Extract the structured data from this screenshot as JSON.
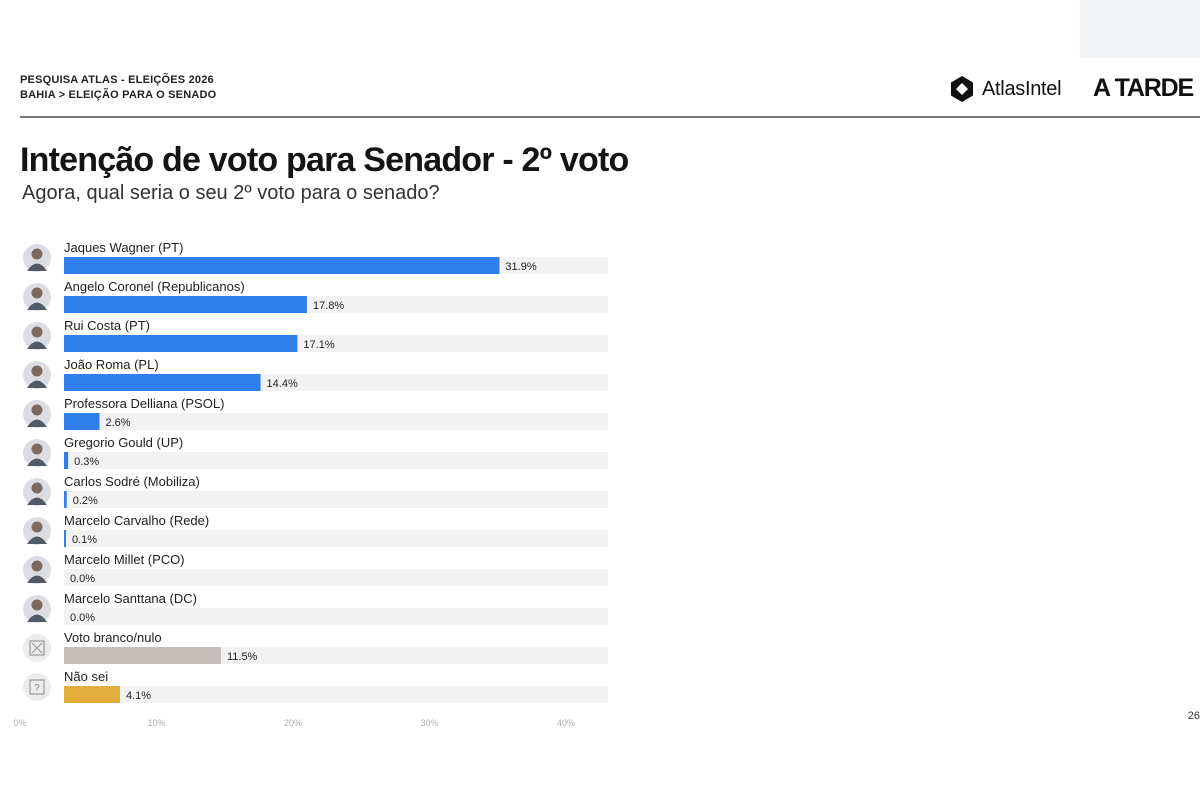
{
  "header": {
    "line1": "PESQUISA ATLAS - ELEIÇÕES 2026",
    "line2": "BAHIA > ELEIÇÃO PARA O SENADO",
    "logo_atlas": "AtlasIntel",
    "logo_atarde": "A TARDE"
  },
  "page_number": "26",
  "colors": {
    "candidate": "#2f80ed",
    "blank_null": "#c9bdbb",
    "dont_know": "#e3ad3c",
    "track": "#f2f2f2"
  },
  "chart_data": {
    "type": "bar",
    "orientation": "horizontal",
    "title": "Intenção de voto para Senador - 2º voto",
    "subtitle": "Agora, qual seria o seu 2º voto para o senado?",
    "xlim": [
      0,
      40
    ],
    "x_ticks": [
      "0%",
      "10%",
      "20%",
      "30%",
      "40%"
    ],
    "categories": [
      "Jaques Wagner (PT)",
      "Angelo Coronel (Republicanos)",
      "Rui Costa (PT)",
      "João Roma (PL)",
      "Professora Delliana (PSOL)",
      "Gregorio Gould (UP)",
      "Carlos Sodré (Mobiliza)",
      "Marcelo Carvalho (Rede)",
      "Marcelo Millet (PCO)",
      "Marcelo Santtana (DC)",
      "Voto branco/nulo",
      "Não sei"
    ],
    "values": [
      31.9,
      17.8,
      17.1,
      14.4,
      2.6,
      0.3,
      0.2,
      0.1,
      0.0,
      0.0,
      11.5,
      4.1
    ],
    "value_labels": [
      "31.9%",
      "17.8%",
      "17.1%",
      "14.4%",
      "2.6%",
      "0.3%",
      "0.2%",
      "0.1%",
      "0.0%",
      "0.0%",
      "11.5%",
      "4.1%"
    ],
    "kinds": [
      "candidate",
      "candidate",
      "candidate",
      "candidate",
      "candidate",
      "candidate",
      "candidate",
      "candidate",
      "candidate",
      "candidate",
      "blank_null",
      "dont_know"
    ],
    "icons": [
      "avatar-icon",
      "avatar-icon",
      "avatar-icon",
      "avatar-icon",
      "avatar-icon",
      "avatar-icon",
      "avatar-icon",
      "avatar-icon",
      "avatar-icon",
      "avatar-icon",
      "x-box-icon",
      "question-box-icon"
    ],
    "grid": false,
    "legend": "none"
  }
}
